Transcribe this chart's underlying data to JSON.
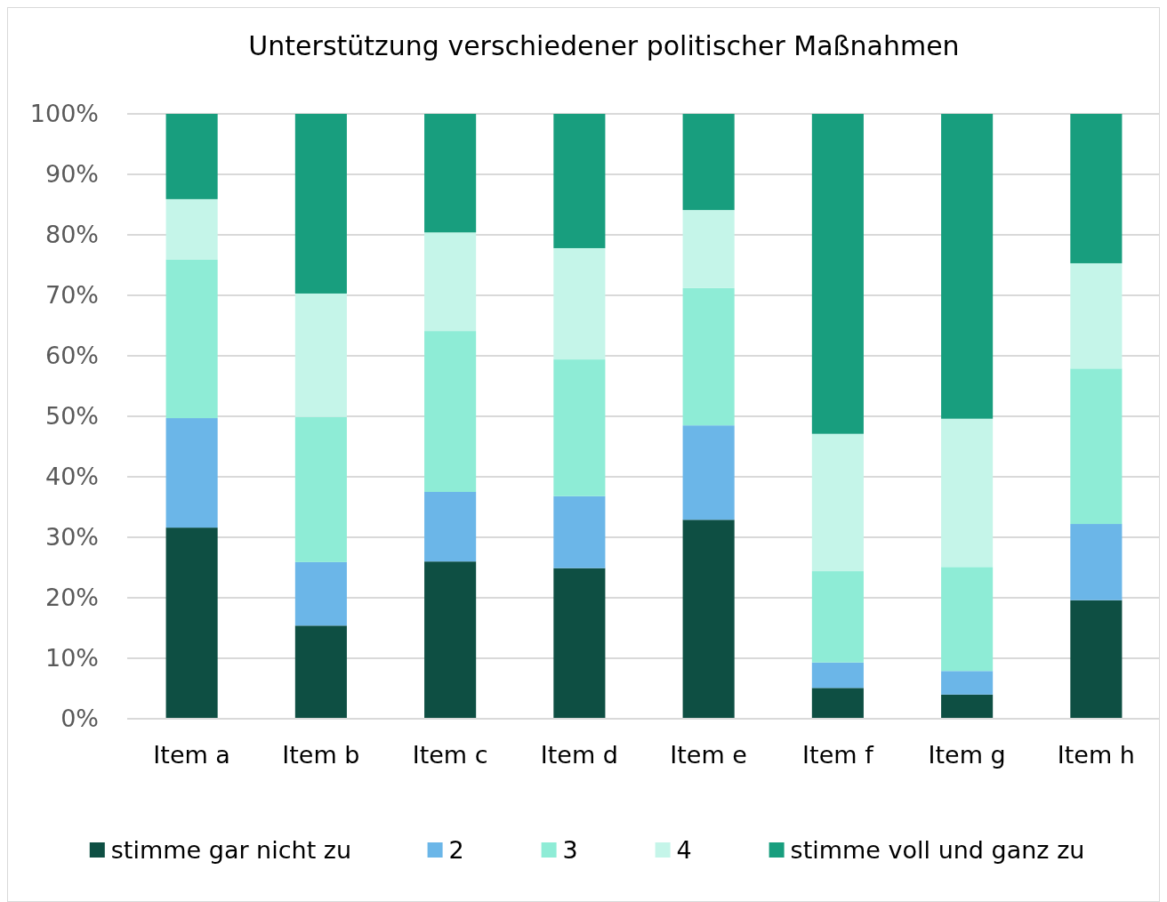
{
  "chart_data": {
    "type": "bar",
    "title": "Unterstützung verschiedener politischer Maßnahmen",
    "stacked": true,
    "categories": [
      "Item a",
      "Item b",
      "Item c",
      "Item d",
      "Item e",
      "Item f",
      "Item g",
      "Item h"
    ],
    "series": [
      {
        "name": "stimme gar nicht zu",
        "color": "#0e4f43",
        "values": [
          31.6,
          15.4,
          26.0,
          24.9,
          32.9,
          5.1,
          4.0,
          19.6
        ]
      },
      {
        "name": "2",
        "color": "#6bb6e8",
        "values": [
          18.1,
          10.5,
          11.5,
          11.9,
          15.6,
          4.2,
          3.9,
          12.6
        ]
      },
      {
        "name": "3",
        "color": "#8eecd6",
        "values": [
          26.2,
          24.0,
          26.6,
          22.6,
          22.7,
          15.1,
          17.2,
          25.7
        ]
      },
      {
        "name": "4",
        "color": "#c5f5e9",
        "values": [
          10.0,
          20.4,
          16.3,
          18.4,
          12.9,
          22.7,
          24.5,
          17.4
        ]
      },
      {
        "name": "stimme voll und ganz zu",
        "color": "#189e7e",
        "values": [
          14.1,
          29.7,
          19.6,
          22.2,
          15.9,
          52.9,
          50.4,
          24.7
        ]
      }
    ],
    "ylim": [
      0,
      100
    ],
    "yticks": [
      {
        "value": 0,
        "label": "0%"
      },
      {
        "value": 10,
        "label": "10%"
      },
      {
        "value": 20,
        "label": "20%"
      },
      {
        "value": 30,
        "label": "30%"
      },
      {
        "value": 40,
        "label": "40%"
      },
      {
        "value": 50,
        "label": "50%"
      },
      {
        "value": 60,
        "label": "60%"
      },
      {
        "value": 70,
        "label": "70%"
      },
      {
        "value": 80,
        "label": "80%"
      },
      {
        "value": 90,
        "label": "90%"
      },
      {
        "value": 100,
        "label": "100%"
      }
    ],
    "grid": "y",
    "legend": "bottom"
  }
}
